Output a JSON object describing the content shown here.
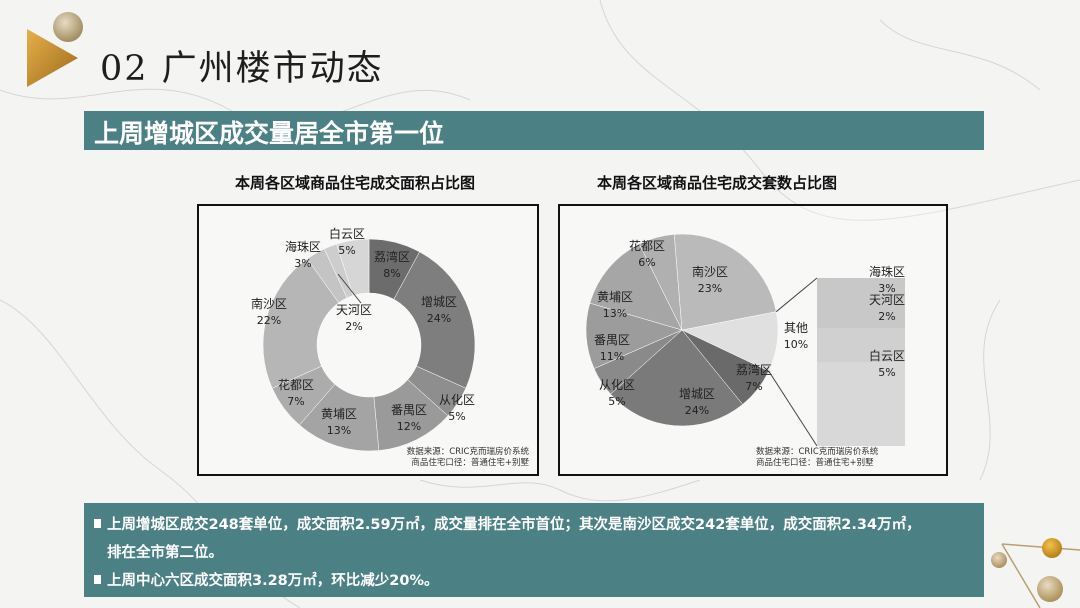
{
  "header": {
    "title": "02 广州楼市动态",
    "banner": "上周增城区成交量居全市第一位"
  },
  "charts": {
    "left_title": "本周各区域商品住宅成交面积占比图",
    "right_title": "本周各区域商品住宅成交套数占比图",
    "source_line1": "数据来源：CRIC克而瑞房价系统",
    "source_line2": "商品住宅口径：普通住宅+别墅"
  },
  "chart_data": [
    {
      "type": "pie",
      "variant": "donut",
      "title": "本周各区域商品住宅成交面积占比图",
      "categories": [
        "荔湾区",
        "增城区",
        "从化区",
        "番禺区",
        "黄埔区",
        "花都区",
        "南沙区",
        "海珠区",
        "天河区",
        "白云区"
      ],
      "values": [
        8,
        24,
        5,
        12,
        13,
        7,
        22,
        3,
        2,
        5
      ],
      "unit": "%",
      "annotation": "数据来源：CRIC克而瑞房价系统 / 商品住宅口径：普通住宅+别墅"
    },
    {
      "type": "pie",
      "variant": "bar-of-pie",
      "title": "本周各区域商品住宅成交套数占比图",
      "categories": [
        "其他",
        "荔湾区",
        "增城区",
        "从化区",
        "番禺区",
        "黄埔区",
        "花都区",
        "南沙区"
      ],
      "values": [
        10,
        7,
        24,
        5,
        11,
        13,
        6,
        23
      ],
      "unit": "%",
      "breakdown": {
        "of": "其他",
        "categories": [
          "海珠区",
          "天河区",
          "白云区"
        ],
        "values": [
          3,
          2,
          5
        ]
      },
      "annotation": "数据来源：CRIC克而瑞房价系统 / 商品住宅口径：普通住宅+别墅"
    }
  ],
  "labels": {
    "donut": [
      {
        "name": "荔湾区",
        "pct": "8%"
      },
      {
        "name": "增城区",
        "pct": "24%"
      },
      {
        "name": "从化区",
        "pct": "5%"
      },
      {
        "name": "番禺区",
        "pct": "12%"
      },
      {
        "name": "黄埔区",
        "pct": "13%"
      },
      {
        "name": "花都区",
        "pct": "7%"
      },
      {
        "name": "南沙区",
        "pct": "22%"
      },
      {
        "name": "海珠区",
        "pct": "3%"
      },
      {
        "name": "天河区",
        "pct": "2%"
      },
      {
        "name": "白云区",
        "pct": "5%"
      }
    ],
    "pie": [
      {
        "name": "其他",
        "pct": "10%"
      },
      {
        "name": "荔湾区",
        "pct": "7%"
      },
      {
        "name": "增城区",
        "pct": "24%"
      },
      {
        "name": "从化区",
        "pct": "5%"
      },
      {
        "name": "番禺区",
        "pct": "11%"
      },
      {
        "name": "黄埔区",
        "pct": "13%"
      },
      {
        "name": "花都区",
        "pct": "6%"
      },
      {
        "name": "南沙区",
        "pct": "23%"
      }
    ],
    "bar": [
      {
        "name": "海珠区",
        "pct": "3%"
      },
      {
        "name": "天河区",
        "pct": "2%"
      },
      {
        "name": "白云区",
        "pct": "5%"
      }
    ]
  },
  "summary": {
    "line1": "上周增城区成交248套单位，成交面积2.59万㎡，成交量排在全市首位；其次是南沙区成交242套单位，成交面积2.34万㎡，",
    "line1_cont": "排在全市第二位。",
    "line2": "上周中心六区成交面积3.28万㎡，环比减少20%。"
  },
  "colors": {
    "banner": "#4b8084",
    "gold": "#c8902a"
  }
}
